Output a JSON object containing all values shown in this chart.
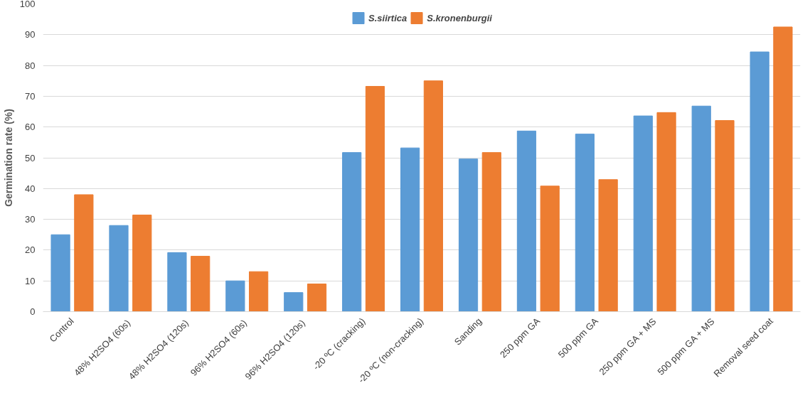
{
  "chart_data": {
    "type": "bar",
    "ylabel": "Germination rate (%)",
    "categories": [
      "Control",
      "48% H2SO4  (60s)",
      "48% H2SO4  (120s)",
      "96% H2SO4  (60s)",
      "96% H2SO4  (120s)",
      "-20 ºC (cracking)",
      "-20 ºC (non-cracking)",
      "Sanding",
      "250 ppm GA",
      "500 ppm GA",
      "250 ppm GA + MS",
      "500 ppm GA + MS",
      "Removal seed coat"
    ],
    "series": [
      {
        "name": "S.siirtica",
        "color": "#5b9bd5",
        "values": [
          25,
          28,
          19.2,
          10,
          6.2,
          51.7,
          53.2,
          49.6,
          58.7,
          57.7,
          63.6,
          66.8,
          84.4
        ]
      },
      {
        "name": "S.kronenburgii",
        "color": "#ed7d31",
        "values": [
          38,
          31.4,
          18,
          13,
          9,
          73.2,
          75,
          51.7,
          40.8,
          42.9,
          64.7,
          62.1,
          92.5
        ]
      }
    ],
    "ylim": [
      0,
      100
    ],
    "yticks": [
      0,
      10,
      20,
      30,
      40,
      50,
      60,
      70,
      80,
      90,
      100
    ],
    "grid": "y",
    "legend": "top"
  }
}
